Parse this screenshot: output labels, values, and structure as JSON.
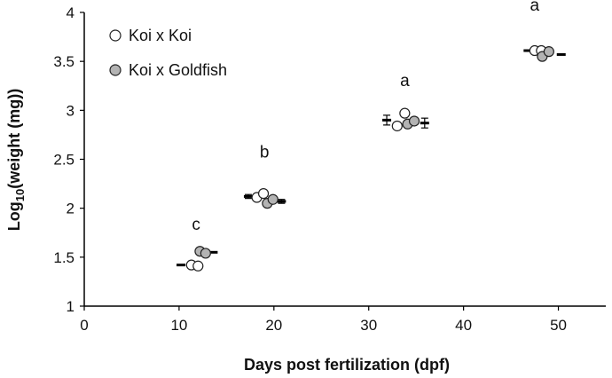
{
  "chart_data": {
    "type": "scatter",
    "title": "",
    "xlabel": "Days post fertilization (dpf)",
    "ylabel_main": "Log",
    "ylabel_sub": "10",
    "ylabel_rest": "(weight (mg))",
    "xlim": [
      0,
      55
    ],
    "ylim": [
      1,
      4
    ],
    "xticks": [
      0,
      10,
      20,
      30,
      40,
      50
    ],
    "yticks": [
      1,
      1.5,
      2,
      2.5,
      3,
      3.5,
      4
    ],
    "ytick_labels": [
      "1",
      "1.5",
      "2",
      "2.5",
      "3",
      "3.5",
      "4"
    ],
    "legend_position": "top-left",
    "series": [
      {
        "name": "Koi x Koi",
        "fill": "#ffffff",
        "stroke": "#222222",
        "points": [
          {
            "x": 11.3,
            "y": 1.42
          },
          {
            "x": 12.0,
            "y": 1.41
          },
          {
            "x": 18.2,
            "y": 2.11
          },
          {
            "x": 18.9,
            "y": 2.15
          },
          {
            "x": 33.0,
            "y": 2.84
          },
          {
            "x": 33.8,
            "y": 2.97
          },
          {
            "x": 47.5,
            "y": 3.61
          },
          {
            "x": 48.2,
            "y": 3.61
          }
        ]
      },
      {
        "name": "Koi x Goldfish",
        "fill": "#b3b3b3",
        "stroke": "#222222",
        "points": [
          {
            "x": 12.2,
            "y": 1.56
          },
          {
            "x": 12.8,
            "y": 1.54
          },
          {
            "x": 19.3,
            "y": 2.05
          },
          {
            "x": 19.9,
            "y": 2.09
          },
          {
            "x": 34.1,
            "y": 2.86
          },
          {
            "x": 34.8,
            "y": 2.89
          },
          {
            "x": 48.3,
            "y": 3.55
          },
          {
            "x": 49.0,
            "y": 3.6
          }
        ]
      }
    ],
    "summary_bars": [
      {
        "x": 10.2,
        "y": 1.42,
        "err": 0.0
      },
      {
        "x": 13.6,
        "y": 1.55,
        "err": 0.0
      },
      {
        "x": 17.3,
        "y": 2.12,
        "err": 0.02
      },
      {
        "x": 20.8,
        "y": 2.07,
        "err": 0.02
      },
      {
        "x": 31.9,
        "y": 2.9,
        "err": 0.05
      },
      {
        "x": 35.9,
        "y": 2.87,
        "err": 0.05
      },
      {
        "x": 46.8,
        "y": 3.61,
        "err": 0.0
      },
      {
        "x": 50.3,
        "y": 3.57,
        "err": 0.0
      }
    ],
    "annotations": [
      {
        "text": "c",
        "x": 11.8,
        "y": 1.78
      },
      {
        "text": "b",
        "x": 19.0,
        "y": 2.52
      },
      {
        "text": "a",
        "x": 33.8,
        "y": 3.25
      },
      {
        "text": "a",
        "x": 47.5,
        "y": 4.02
      }
    ]
  }
}
